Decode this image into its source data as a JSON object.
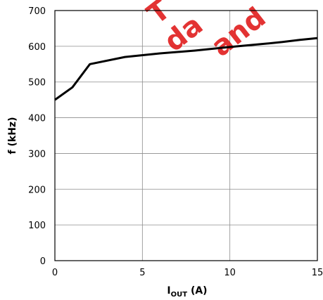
{
  "chart_data": {
    "type": "line",
    "xlabel": {
      "main": "I",
      "sub": "OUT",
      "unit": " (A)"
    },
    "ylabel": "f (kHz)",
    "xlim": [
      0,
      15
    ],
    "ylim": [
      0,
      700
    ],
    "xticks": [
      0,
      5,
      10,
      15
    ],
    "yticks": [
      0,
      100,
      200,
      300,
      400,
      500,
      600,
      700
    ],
    "grid": true,
    "series": [
      {
        "x": [
          0,
          1,
          2,
          4,
          6,
          8,
          10,
          12,
          13,
          14,
          15
        ],
        "y": [
          450,
          485,
          550,
          570,
          580,
          588,
          598,
          607,
          612,
          618,
          623
        ]
      }
    ]
  },
  "watermark": {
    "color": "#e01e1e",
    "lines": [
      "T",
      "da",
      "and"
    ]
  }
}
